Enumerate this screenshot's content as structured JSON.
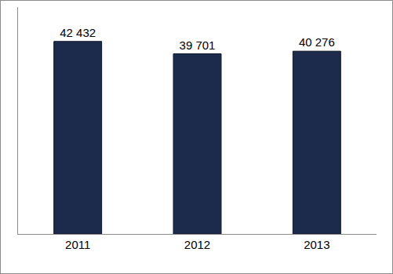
{
  "chart_data": {
    "type": "bar",
    "categories": [
      "2011",
      "2012",
      "2013"
    ],
    "values": [
      42432,
      39701,
      40276
    ],
    "value_labels": [
      "42 432",
      "39 701",
      "40 276"
    ],
    "data_labels": true,
    "color": "#1c2b4c",
    "ylim": [
      0,
      50000
    ],
    "grid": false,
    "tick_labels": "x"
  }
}
